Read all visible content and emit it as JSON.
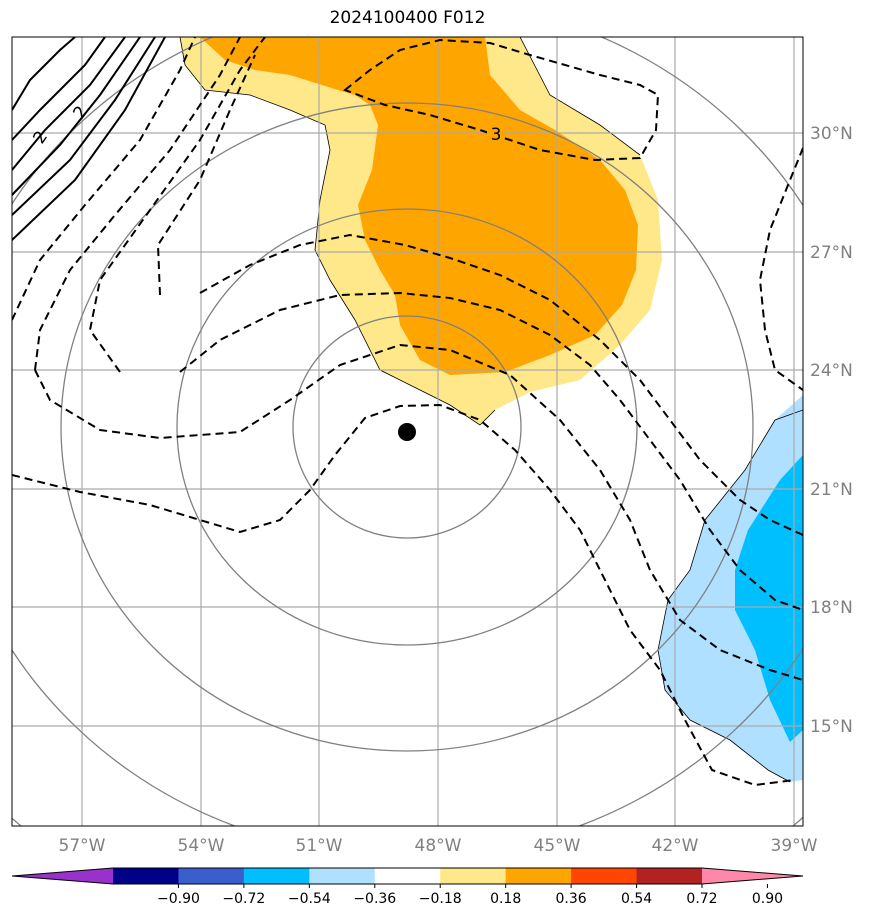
{
  "title": "2024100400 F012",
  "map": {
    "lon_labels": [
      "57°W",
      "54°W",
      "51°W",
      "48°W",
      "45°W",
      "42°W",
      "39°W"
    ],
    "lat_labels": [
      "30°N",
      "27°N",
      "24°N",
      "21°N",
      "18°N",
      "15°N"
    ],
    "contour_labels": [
      "2",
      "2",
      "3"
    ],
    "center_marker": "storm-center"
  },
  "colorbar": {
    "ticks": [
      "−0.90",
      "−0.72",
      "−0.54",
      "−0.36",
      "−0.18",
      "0.18",
      "0.36",
      "0.54",
      "0.72",
      "0.90"
    ],
    "colors": [
      "#9932cc",
      "#00008b",
      "#3a5fcd",
      "#00bfff",
      "#b0e0ff",
      "#ffffff",
      "#ffe88a",
      "#ffa500",
      "#ff4500",
      "#b22222",
      "#ff88aa"
    ]
  }
}
